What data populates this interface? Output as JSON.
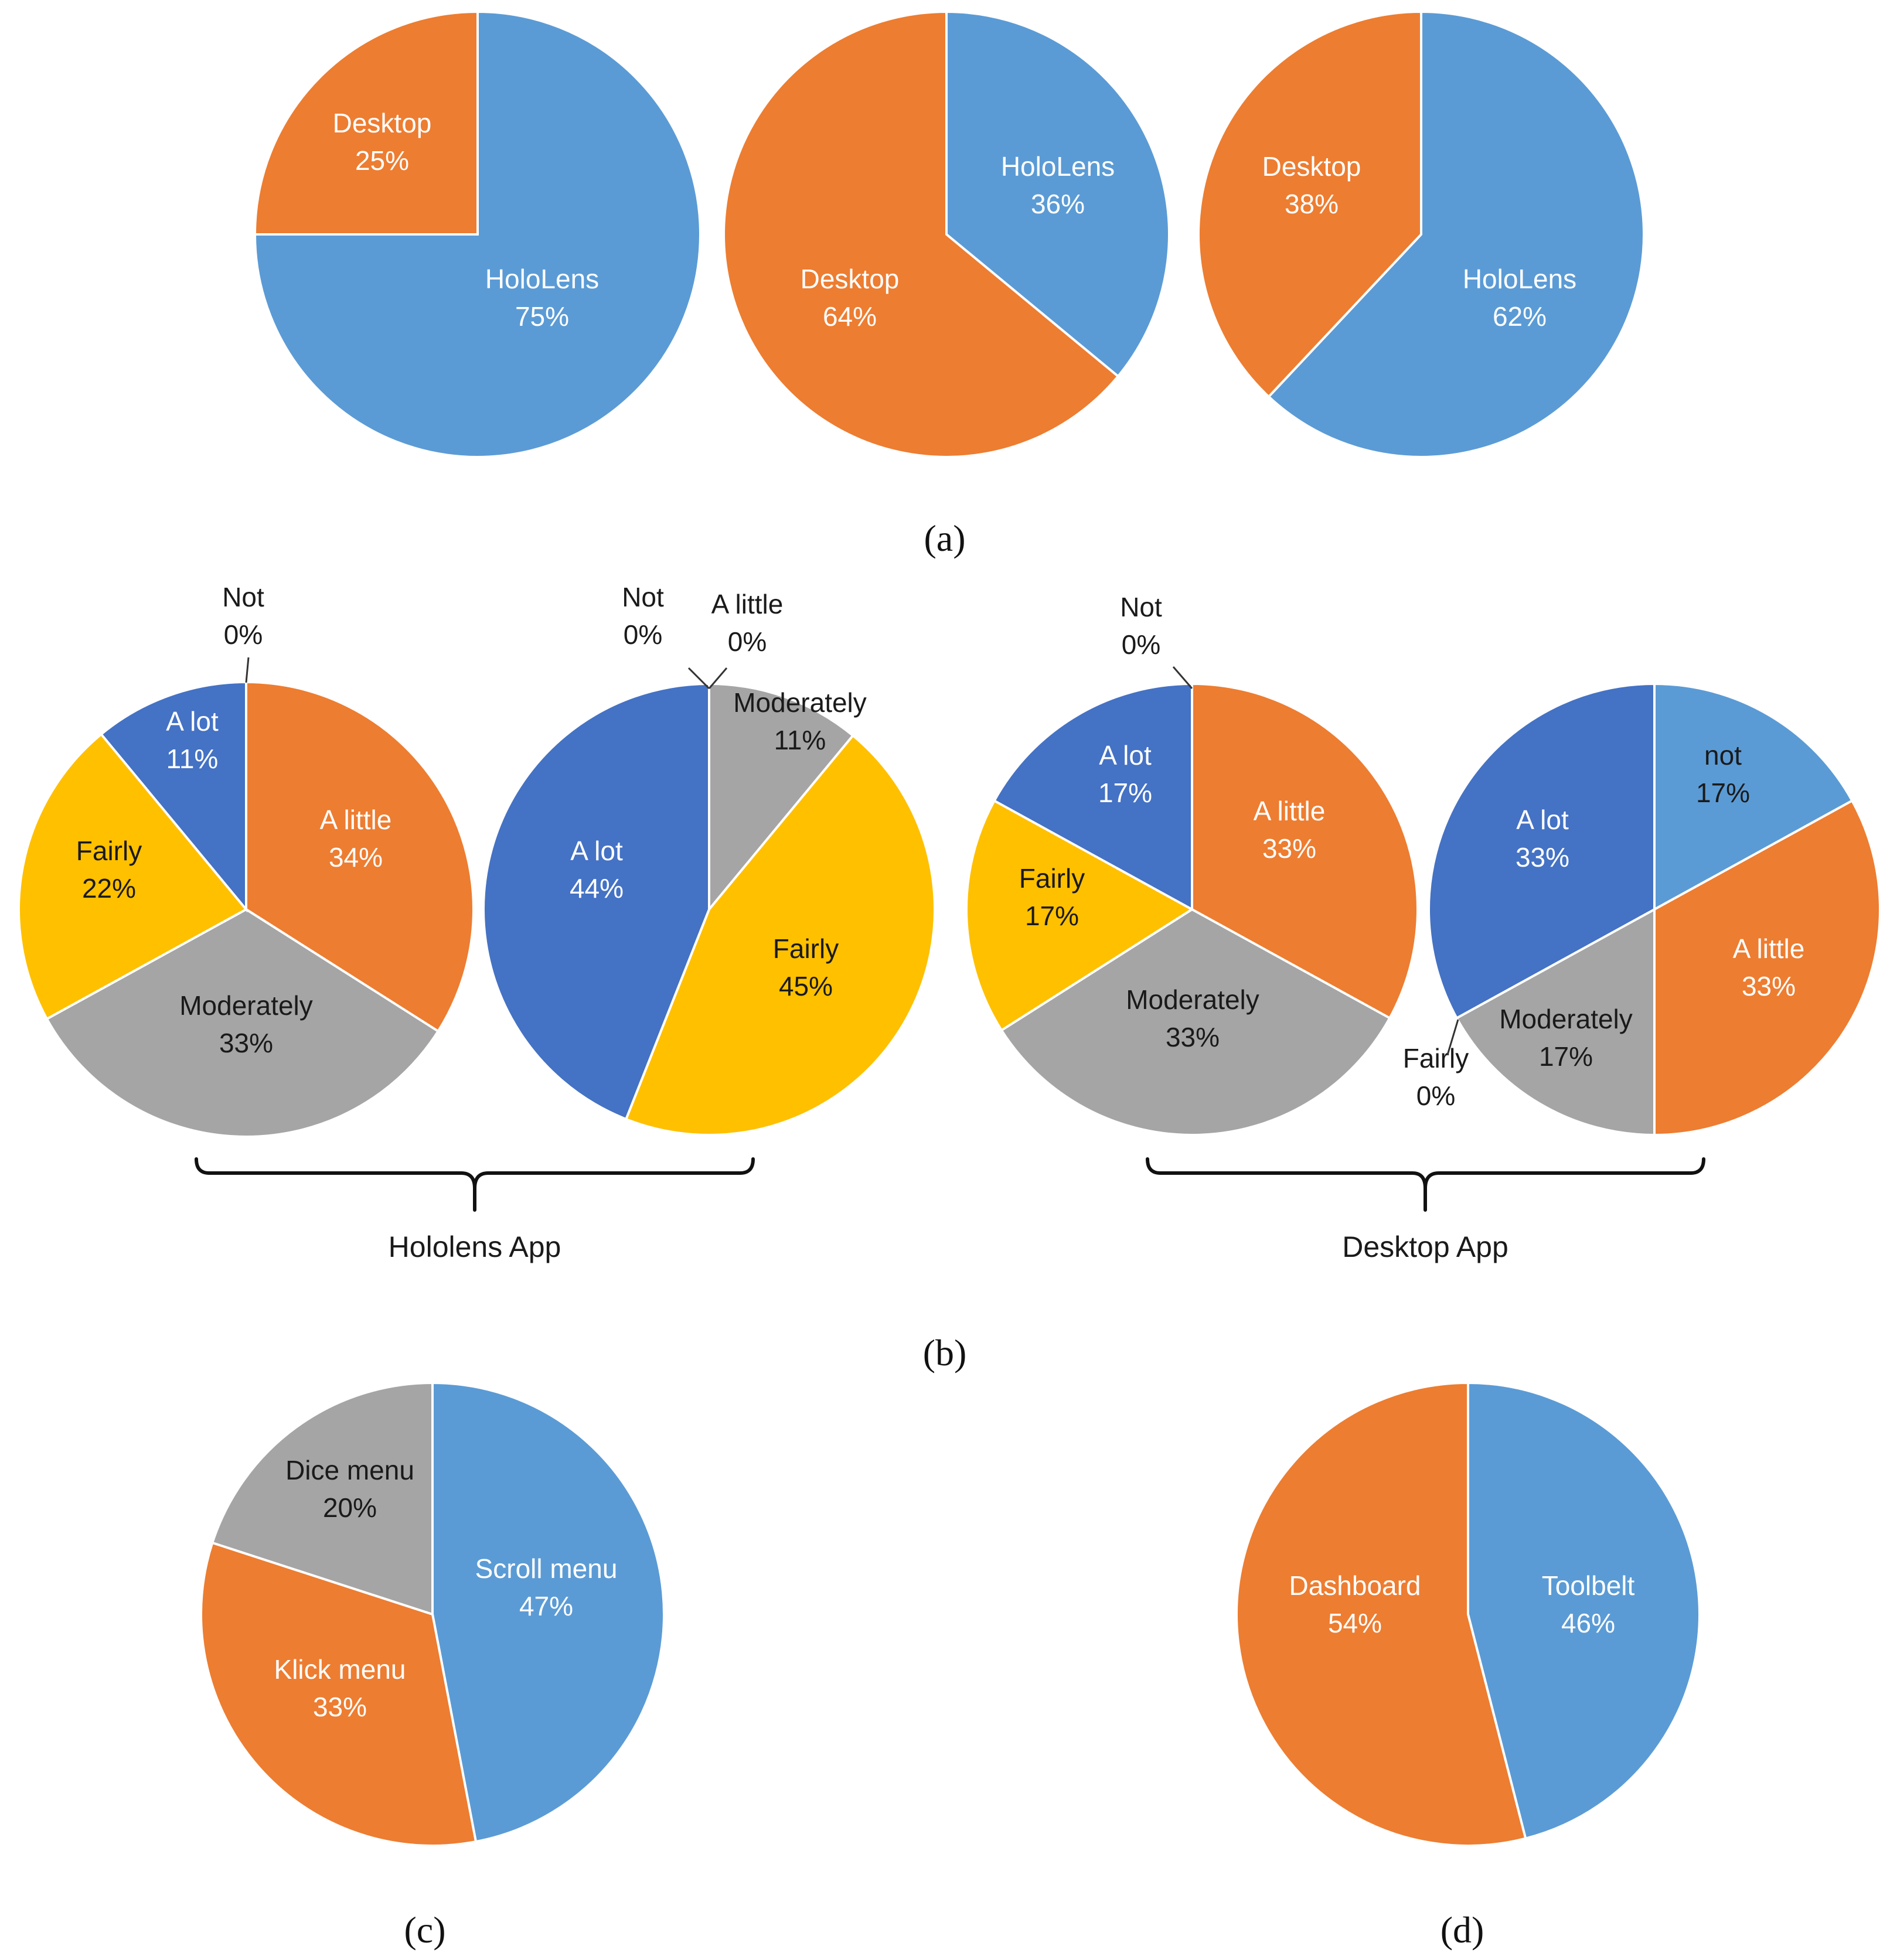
{
  "colors": {
    "blue": "#5B9BD5",
    "orange": "#ED7D31",
    "gray": "#A5A5A5",
    "yellow": "#FFC000",
    "darkblue": "#4472C4"
  },
  "chart_data": [
    {
      "id": "a1",
      "type": "pie",
      "panel": "a",
      "slices": [
        {
          "label": "HoloLens",
          "pct": "75%",
          "value": 75,
          "color": "blue"
        },
        {
          "label": "Desktop",
          "pct": "25%",
          "value": 25,
          "color": "orange"
        }
      ]
    },
    {
      "id": "a2",
      "type": "pie",
      "panel": "a",
      "slices": [
        {
          "label": "HoloLens",
          "pct": "36%",
          "value": 36,
          "color": "blue"
        },
        {
          "label": "Desktop",
          "pct": "64%",
          "value": 64,
          "color": "orange"
        }
      ]
    },
    {
      "id": "a3",
      "type": "pie",
      "panel": "a",
      "slices": [
        {
          "label": "HoloLens",
          "pct": "62%",
          "value": 62,
          "color": "blue"
        },
        {
          "label": "Desktop",
          "pct": "38%",
          "value": 38,
          "color": "orange"
        }
      ]
    },
    {
      "id": "b1",
      "type": "pie",
      "panel": "b",
      "group": "Hololens App",
      "slices": [
        {
          "label": "Not",
          "pct": "0%",
          "value": 0,
          "color": "blue"
        },
        {
          "label": "A little",
          "pct": "34%",
          "value": 34,
          "color": "orange"
        },
        {
          "label": "Moderately",
          "pct": "33%",
          "value": 33,
          "color": "gray"
        },
        {
          "label": "Fairly",
          "pct": "22%",
          "value": 22,
          "color": "yellow"
        },
        {
          "label": "A lot",
          "pct": "11%",
          "value": 11,
          "color": "darkblue"
        }
      ]
    },
    {
      "id": "b2",
      "type": "pie",
      "panel": "b",
      "group": "Hololens App",
      "slices": [
        {
          "label": "Not",
          "pct": "0%",
          "value": 0,
          "color": "blue"
        },
        {
          "label": "A little",
          "pct": "0%",
          "value": 0,
          "color": "orange"
        },
        {
          "label": "Moderately",
          "pct": "11%",
          "value": 11,
          "color": "gray"
        },
        {
          "label": "Fairly",
          "pct": "45%",
          "value": 45,
          "color": "yellow"
        },
        {
          "label": "A lot",
          "pct": "44%",
          "value": 44,
          "color": "darkblue"
        }
      ]
    },
    {
      "id": "b3",
      "type": "pie",
      "panel": "b",
      "group": "Desktop App",
      "slices": [
        {
          "label": "Not",
          "pct": "0%",
          "value": 0,
          "color": "blue"
        },
        {
          "label": "A little",
          "pct": "33%",
          "value": 33,
          "color": "orange"
        },
        {
          "label": "Moderately",
          "pct": "33%",
          "value": 33,
          "color": "gray"
        },
        {
          "label": "Fairly",
          "pct": "17%",
          "value": 17,
          "color": "yellow"
        },
        {
          "label": "A lot",
          "pct": "17%",
          "value": 17,
          "color": "darkblue"
        }
      ]
    },
    {
      "id": "b4",
      "type": "pie",
      "panel": "b",
      "group": "Desktop App",
      "slices": [
        {
          "label": "not",
          "pct": "17%",
          "value": 17,
          "color": "blue"
        },
        {
          "label": "A little",
          "pct": "33%",
          "value": 33,
          "color": "orange"
        },
        {
          "label": "Moderately",
          "pct": "17%",
          "value": 17,
          "color": "gray"
        },
        {
          "label": "Fairly",
          "pct": "0%",
          "value": 0,
          "color": "yellow"
        },
        {
          "label": "A lot",
          "pct": "33%",
          "value": 33,
          "color": "darkblue"
        }
      ]
    },
    {
      "id": "c1",
      "type": "pie",
      "panel": "c",
      "slices": [
        {
          "label": "Scroll menu",
          "pct": "47%",
          "value": 47,
          "color": "blue"
        },
        {
          "label": "Klick menu",
          "pct": "33%",
          "value": 33,
          "color": "orange"
        },
        {
          "label": "Dice menu",
          "pct": "20%",
          "value": 20,
          "color": "gray"
        }
      ]
    },
    {
      "id": "d1",
      "type": "pie",
      "panel": "d",
      "slices": [
        {
          "label": "Toolbelt",
          "pct": "46%",
          "value": 46,
          "color": "blue"
        },
        {
          "label": "Dashboard",
          "pct": "54%",
          "value": 54,
          "color": "orange"
        }
      ]
    }
  ],
  "groups": {
    "hololens": "Hololens App",
    "desktop": "Desktop App"
  },
  "captions": {
    "a": "(a)",
    "b": "(b)",
    "c": "(c)",
    "d": "(d)"
  }
}
